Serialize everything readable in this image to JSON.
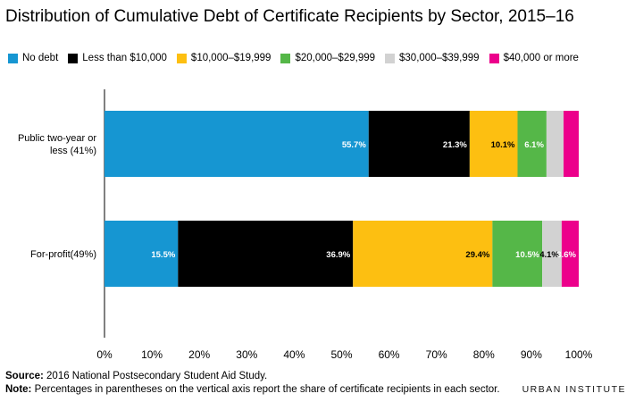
{
  "chart_data": {
    "type": "bar",
    "orientation": "horizontal",
    "stacked": true,
    "title": "Distribution of Cumulative Debt of Certificate Recipients by Sector, 2015–16",
    "categories": [
      "Public two-year or less (41%)",
      "For-profit(49%)"
    ],
    "category_lines": [
      [
        "Public two-year or",
        "less (41%)"
      ],
      [
        "For-profit(49%)"
      ]
    ],
    "series": [
      {
        "name": "No debt",
        "color": "#1696d2",
        "values": [
          55.7,
          15.5
        ],
        "labels": [
          "55.7%",
          "15.5%"
        ],
        "label_color": "#ffffff"
      },
      {
        "name": "Less than $10,000",
        "color": "#000000",
        "values": [
          21.3,
          36.9
        ],
        "labels": [
          "21.3%",
          "36.9%"
        ],
        "label_color": "#ffffff"
      },
      {
        "name": "$10,000–$19,999",
        "color": "#fdbf11",
        "values": [
          10.1,
          29.4
        ],
        "labels": [
          "10.1%",
          "29.4%"
        ],
        "label_color": "#000000"
      },
      {
        "name": "$20,000–$29,999",
        "color": "#55b748",
        "values": [
          6.1,
          10.5
        ],
        "labels": [
          "6.1%",
          "10.5%"
        ],
        "label_color": "#ffffff"
      },
      {
        "name": "$30,000–$39,999",
        "color": "#d2d2d2",
        "values": [
          3.6,
          4.1
        ],
        "labels": [
          "",
          "4.1%"
        ],
        "label_color": "#000000"
      },
      {
        "name": "$40,000 or more",
        "color": "#ec008b",
        "values": [
          3.2,
          3.6
        ],
        "labels": [
          "",
          "3.6%"
        ],
        "label_color": "#ffffff"
      }
    ],
    "xlim": [
      0,
      100
    ],
    "xticks": [
      "0%",
      "10%",
      "20%",
      "30%",
      "40%",
      "50%",
      "60%",
      "70%",
      "80%",
      "90%",
      "100%"
    ],
    "grid": false,
    "legend_position": "top"
  },
  "notes": {
    "source_label": "Source:",
    "source_text": " 2016 National Postsecondary Student Aid Study.",
    "note_label": "Note:",
    "note_text": " Percentages in parentheses on the vertical axis report the share of certificate recipients in each sector."
  },
  "brand": "URBAN INSTITUTE"
}
